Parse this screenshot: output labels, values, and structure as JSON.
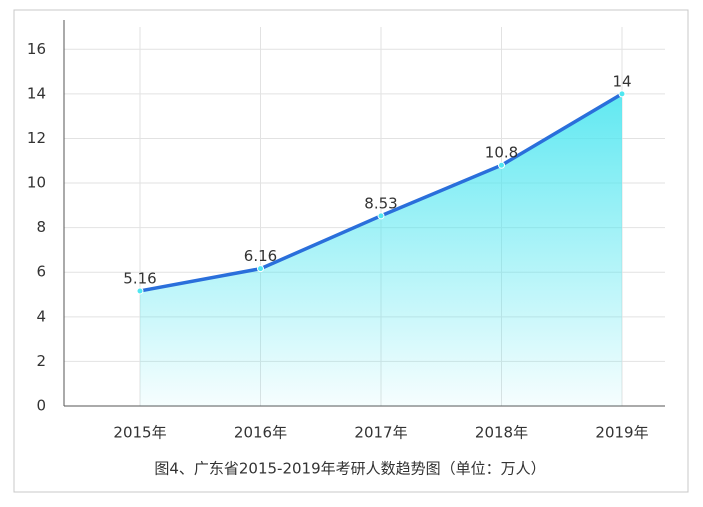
{
  "chart_data": {
    "type": "area",
    "title": "图4、广东省2015-2019年考研人数趋势图（单位：万人）",
    "categories": [
      "2015年",
      "2016年",
      "2017年",
      "2018年",
      "2019年"
    ],
    "values": [
      5.16,
      6.16,
      8.53,
      10.8,
      14
    ],
    "color": "#2a6fdb",
    "fill_color": "#4fe6f0",
    "ylim": [
      0,
      17
    ],
    "yticks": [
      0,
      2,
      4,
      6,
      8,
      10,
      12,
      14,
      16
    ],
    "grid": true
  }
}
